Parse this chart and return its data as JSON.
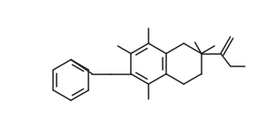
{
  "bg": "#ffffff",
  "lc": "#222222",
  "lw": 1.1,
  "figsize": [
    3.02,
    1.48
  ],
  "dpi": 100,
  "xlim": [
    0,
    302
  ],
  "ylim": [
    0,
    148
  ]
}
